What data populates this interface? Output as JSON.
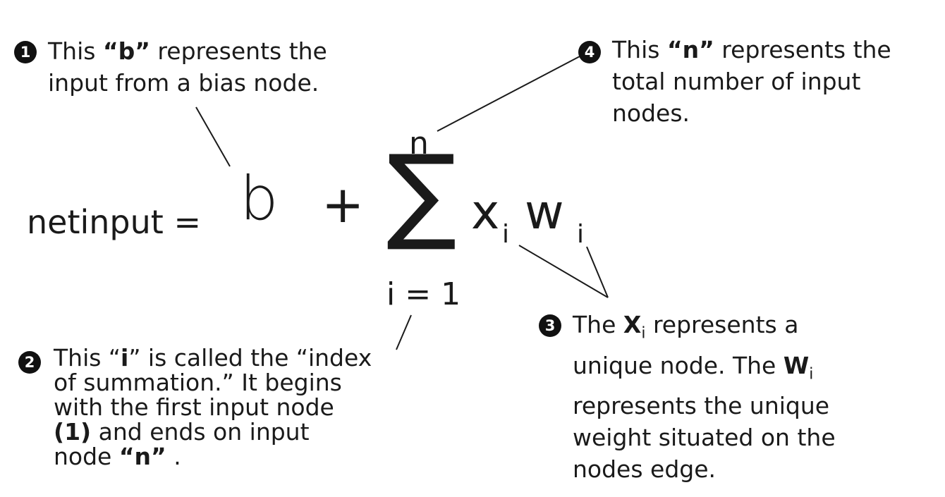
{
  "formula": {
    "lhs": "netinput =",
    "bias": "b",
    "plus": "+",
    "sigma": "∑",
    "upper_limit": "n",
    "lower_limit": "i = 1",
    "x": "x",
    "w": "w",
    "sub_x": "i",
    "sub_w": "i"
  },
  "annotations": {
    "a1": {
      "badge": "1",
      "p1": "This ",
      "bold": "“b”",
      "p2": " represents the",
      "line2": "input from a bias node."
    },
    "a2": {
      "badge": "2",
      "p1": "This “",
      "bold": "i",
      "p2": "” is called the “index",
      "line2": "of summation.”  It begins",
      "line3": "with the first input node",
      "bold2": "(1)",
      "line4_rest": " and ends on input",
      "line5_pre": "node ",
      "bold3": "“n”",
      "line5_post": " ."
    },
    "a3": {
      "badge": "3",
      "p1": "The ",
      "bold_x": "X",
      "sub_x": "i",
      "p2": " represents a",
      "line2_pre": "unique node. The  ",
      "bold_w": "W",
      "sub_w": "i",
      "line3": "represents the unique",
      "line4": "weight situated on the",
      "line5": "nodes edge."
    },
    "a4": {
      "badge": "4",
      "p1": "This ",
      "bold": "“n”",
      "p2": " represents the",
      "line2": "total number of input",
      "line3": "nodes."
    }
  },
  "colors": {
    "text": "#1a1a1a",
    "badge": "#111111",
    "background": "#ffffff"
  }
}
